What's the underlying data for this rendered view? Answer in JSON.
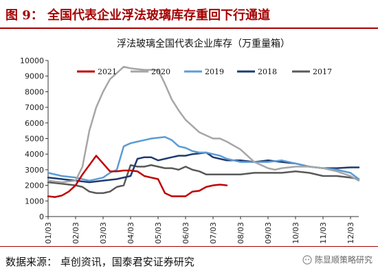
{
  "header": {
    "title": "图 9：  全国代表企业浮法玻璃库存重回下行通道"
  },
  "footer": {
    "source": "数据来源：  卓创资讯，国泰君安证券研究",
    "watermark": "陈显顺策略研究"
  },
  "colors": {
    "accent": "#a50000"
  },
  "chart_data": {
    "type": "line",
    "title": "浮法玻璃全国代表企业库存（万重量箱）",
    "xlabel": "",
    "ylabel": "",
    "ylim": [
      0,
      10000
    ],
    "yticks": [
      0,
      1000,
      2000,
      3000,
      4000,
      5000,
      6000,
      7000,
      8000,
      9000,
      10000
    ],
    "xlim": [
      0,
      11.3
    ],
    "x_ticks": [
      "01/03",
      "02/03",
      "03/03",
      "04/03",
      "05/03",
      "06/03",
      "07/03",
      "08/03",
      "09/03",
      "10/03",
      "11/03",
      "12/03"
    ],
    "grid": false,
    "legend_position": "top",
    "series": [
      {
        "name": "2021",
        "color": "#c00000",
        "width": 2.5,
        "x": [
          0,
          0.25,
          0.5,
          0.75,
          1.0,
          1.25,
          1.5,
          1.75,
          2.0,
          2.25,
          2.5,
          2.75,
          3.0,
          3.25,
          3.5,
          3.75,
          4.0,
          4.25,
          4.5,
          4.75,
          5.0,
          5.25,
          5.5,
          5.75,
          6.0,
          6.25,
          6.5
        ],
        "values": [
          1300,
          1250,
          1350,
          1600,
          2000,
          2700,
          3300,
          3900,
          3400,
          2900,
          2900,
          2950,
          2950,
          2900,
          2600,
          2500,
          2400,
          1500,
          1300,
          1300,
          1300,
          1600,
          1650,
          1900,
          2000,
          2050,
          2000
        ]
      },
      {
        "name": "2020",
        "color": "#a6a6a6",
        "width": 2.5,
        "x": [
          0,
          0.5,
          1.0,
          1.25,
          1.5,
          1.75,
          2.0,
          2.25,
          2.5,
          2.75,
          3.0,
          3.5,
          4.0,
          4.25,
          4.5,
          4.75,
          5.0,
          5.25,
          5.5,
          5.75,
          6.0,
          6.25,
          6.5,
          7.0,
          7.5,
          8.0,
          8.25,
          8.5,
          9.0,
          9.5,
          10.0,
          10.5,
          11.0,
          11.3
        ],
        "values": [
          2300,
          2200,
          2300,
          3200,
          5500,
          7000,
          8000,
          8800,
          9200,
          9600,
          9500,
          9400,
          9400,
          8500,
          7500,
          6800,
          6200,
          5800,
          5400,
          5200,
          5000,
          5000,
          4800,
          4300,
          3500,
          3100,
          3000,
          3100,
          3200,
          3200,
          3100,
          2900,
          2600,
          2300
        ]
      },
      {
        "name": "2019",
        "color": "#5b9bd5",
        "width": 2.5,
        "x": [
          0,
          0.5,
          1.0,
          1.5,
          2.0,
          2.25,
          2.5,
          2.75,
          3.0,
          3.25,
          3.5,
          3.75,
          4.0,
          4.25,
          4.5,
          4.75,
          5.0,
          5.25,
          5.5,
          5.75,
          6.0,
          6.25,
          6.5,
          7.0,
          7.5,
          8.0,
          8.5,
          9.0,
          9.5,
          10.0,
          10.5,
          11.0,
          11.3
        ],
        "values": [
          2800,
          2600,
          2500,
          2300,
          2500,
          2800,
          3000,
          4500,
          4700,
          4800,
          4900,
          5000,
          5050,
          5100,
          4900,
          4500,
          4400,
          4200,
          4100,
          4100,
          4000,
          3900,
          3700,
          3500,
          3500,
          3500,
          3600,
          3400,
          3200,
          3100,
          3000,
          2800,
          2400
        ]
      },
      {
        "name": "2018",
        "color": "#1f3a6e",
        "width": 2.5,
        "x": [
          0,
          0.5,
          1.0,
          1.5,
          2.0,
          2.5,
          3.0,
          3.25,
          3.5,
          3.75,
          4.0,
          4.25,
          4.5,
          4.75,
          5.0,
          5.25,
          5.5,
          5.75,
          6.0,
          6.25,
          6.5,
          7.0,
          7.5,
          8.0,
          8.5,
          9.0,
          9.5,
          10.0,
          10.5,
          11.0,
          11.3
        ],
        "values": [
          2500,
          2400,
          2300,
          2200,
          2300,
          2400,
          2600,
          3700,
          3800,
          3800,
          3600,
          3700,
          3800,
          3900,
          3900,
          4000,
          4050,
          4100,
          3800,
          3700,
          3600,
          3600,
          3500,
          3600,
          3500,
          3400,
          3200,
          3100,
          3100,
          3150,
          3150
        ]
      },
      {
        "name": "2017",
        "color": "#595959",
        "width": 2.5,
        "x": [
          0,
          0.5,
          1.0,
          1.25,
          1.5,
          1.75,
          2.0,
          2.25,
          2.5,
          2.75,
          3.0,
          3.25,
          3.5,
          3.75,
          4.0,
          4.25,
          4.5,
          4.75,
          5.0,
          5.25,
          5.5,
          5.75,
          6.0,
          6.5,
          7.0,
          7.5,
          8.0,
          8.5,
          9.0,
          9.5,
          10.0,
          10.5,
          11.0,
          11.3
        ],
        "values": [
          2200,
          2100,
          2000,
          1900,
          1600,
          1500,
          1500,
          1600,
          1900,
          2000,
          3300,
          3200,
          3200,
          3300,
          3200,
          3100,
          3100,
          3000,
          3200,
          3000,
          2900,
          2700,
          2700,
          2700,
          2700,
          2800,
          2800,
          2800,
          2900,
          2800,
          2600,
          2600,
          2500,
          2400
        ]
      }
    ]
  }
}
